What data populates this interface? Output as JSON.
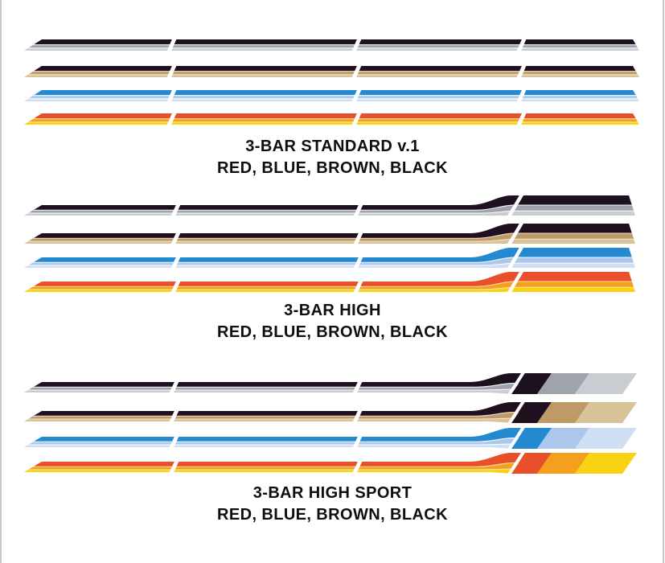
{
  "page": {
    "background": "#ffffff",
    "edge_border_color": "#c7c7c7"
  },
  "sections": [
    {
      "name": "standard",
      "variant": "standard",
      "title": "3-BAR STANDARD v.1",
      "subtitle": "RED, BLUE, BROWN, BLACK",
      "stripes": [
        "black",
        "brown",
        "blue",
        "red"
      ]
    },
    {
      "name": "high",
      "variant": "high",
      "title": "3-BAR HIGH",
      "subtitle": "RED, BLUE, BROWN, BLACK",
      "stripes": [
        "black",
        "brown",
        "blue",
        "red"
      ]
    },
    {
      "name": "high_sport",
      "variant": "sport",
      "title": "3-BAR HIGH SPORT",
      "subtitle": "RED, BLUE, BROWN, BLACK",
      "stripes": [
        "black",
        "brown",
        "blue",
        "red"
      ]
    }
  ],
  "schemes": {
    "black": {
      "bars": [
        "#1d1120",
        "#9fa3ab",
        "#c9ccd1"
      ],
      "separator": "#ffffff"
    },
    "brown": {
      "bars": [
        "#200f1e",
        "#c09a66",
        "#d8c298"
      ],
      "separator": "#f3ead2"
    },
    "blue": {
      "bars": [
        "#2589cf",
        "#abc8ec",
        "#cfdff3"
      ],
      "separator": "#ffffff"
    },
    "red": {
      "bars": [
        "#e8502b",
        "#f5a01d",
        "#f8d313"
      ],
      "separator": "#fbe9a8"
    }
  },
  "gap_color": "#ffffff"
}
